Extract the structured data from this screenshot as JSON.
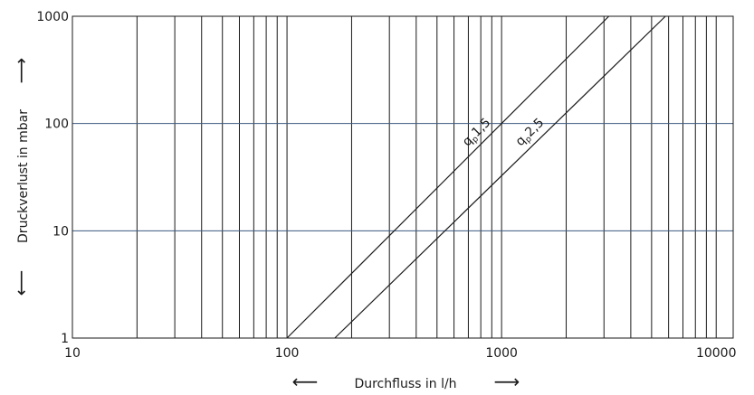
{
  "chart_data": {
    "type": "line",
    "xscale": "log",
    "yscale": "log",
    "xlim": [
      10,
      12000
    ],
    "ylim": [
      1,
      1000
    ],
    "x_ticks": [
      10,
      100,
      1000,
      10000
    ],
    "x_tick_labels": [
      "10",
      "100",
      "1000",
      "10000"
    ],
    "y_ticks": [
      1,
      10,
      100,
      1000
    ],
    "y_tick_labels": [
      "1",
      "10",
      "100",
      "1000"
    ],
    "xlabel": "Durchfluss in l/h",
    "ylabel": "Druckverlust in mbar",
    "x_arrow_left": "⟵",
    "x_arrow_right": "⟶",
    "y_arrow_up": "⟶",
    "y_arrow_down": "⟵",
    "grid": true,
    "series": [
      {
        "name": "qp 1,5",
        "label_main": "q",
        "label_sub": "p",
        "label_value": "1,5",
        "x": [
          100,
          3160
        ],
        "y": [
          1,
          1000
        ]
      },
      {
        "name": "qp 2,5",
        "label_main": "q",
        "label_sub": "p",
        "label_value": "2,5",
        "x": [
          167,
          5800
        ],
        "y": [
          1,
          1000
        ]
      }
    ],
    "colors": {
      "vertical_grid": "#1a1a1a",
      "horizontal_grid": "#3c5a80",
      "series": "#1a1a1a",
      "frame": "#1a1a1a"
    }
  }
}
